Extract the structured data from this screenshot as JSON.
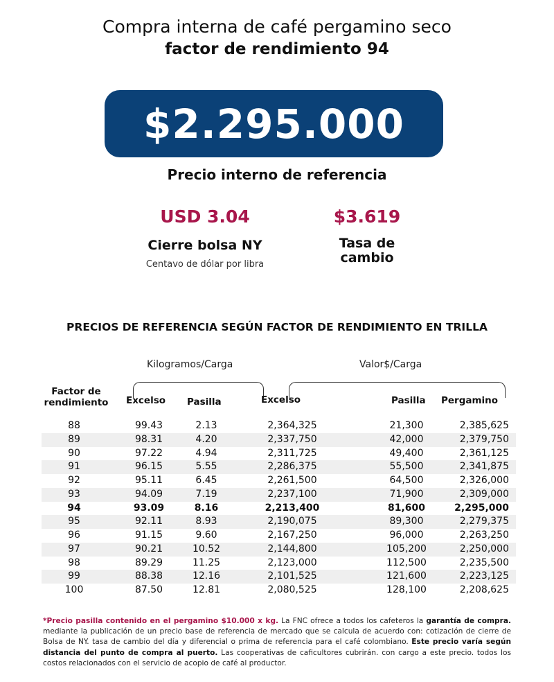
{
  "title": "Compra interna de café pergamino seco",
  "subtitle": "factor de rendimiento 94",
  "price": "$2.295.000",
  "price_label": "Precio interno de referencia",
  "ny": {
    "value": "USD 3.04",
    "label": "Cierre bolsa NY",
    "sublabel": "Centavo de dólar por libra"
  },
  "fx": {
    "value": "$3.619",
    "label_1": "Tasa de",
    "label_2": "cambio"
  },
  "section_title": "PRECIOS DE REFERENCIA SEGÚN FACTOR DE RENDIMIENTO EN TRILLA",
  "table": {
    "group_kg": "Kilogramos/Carga",
    "group_val": "Valor$/Carga",
    "headers": {
      "factor_1": "Factor de",
      "factor_2": "rendimiento",
      "excelso_kg": "Excelso",
      "pasilla_kg": "Pasilla",
      "excelso_val": "Excelso",
      "pasilla_val": "Pasilla",
      "pergamino": "Pergamino"
    },
    "highlight_factor": "94",
    "rows": [
      [
        "88",
        "99.43",
        "2.13",
        "2,364,325",
        "21,300",
        "2,385,625"
      ],
      [
        "89",
        "98.31",
        "4.20",
        "2,337,750",
        "42,000",
        "2,379,750"
      ],
      [
        "90",
        "97.22",
        "4.94",
        "2,311,725",
        "49,400",
        "2,361,125"
      ],
      [
        "91",
        "96.15",
        "5.55",
        "2,286,375",
        "55,500",
        "2,341,875"
      ],
      [
        "92",
        "95.11",
        "6.45",
        "2,261,500",
        "64,500",
        "2,326,000"
      ],
      [
        "93",
        "94.09",
        "7.19",
        "2,237,100",
        "71,900",
        "2,309,000"
      ],
      [
        "94",
        "93.09",
        "8.16",
        "2,213,400",
        "81,600",
        "2,295,000"
      ],
      [
        "95",
        "92.11",
        "8.93",
        "2,190,075",
        "89,300",
        "2,279,375"
      ],
      [
        "96",
        "91.15",
        "9.60",
        "2,167,250",
        "96,000",
        "2,263,250"
      ],
      [
        "97",
        "90.21",
        "10.52",
        "2,144,800",
        "105,200",
        "2,250,000"
      ],
      [
        "98",
        "89.29",
        "11.25",
        "2,123,000",
        "112,500",
        "2,235,500"
      ],
      [
        "99",
        "88.38",
        "12.16",
        "2,101,525",
        "121,600",
        "2,223,125"
      ],
      [
        "100",
        "87.50",
        "12.81",
        "2,080,525",
        "128,100",
        "2,208,625"
      ]
    ]
  },
  "footnote": {
    "p1": "*Precio pasilla contenido en el pergamino $10.000 x kg.",
    "p2": " La FNC ofrece a todos los cafeteros la ",
    "p3": "garantía de compra.",
    "p4": " mediante la publicación de un precio base de referencia de mercado que se calcula de acuerdo con: cotización de cierre de Bolsa de NY. tasa de cambio del día y diferencial o prima de referencia para el café colombiano. ",
    "p5": "Este precio varía según distancia del punto de compra al puerto.",
    "p6": " Las cooperativas de caficultores cubrirán. con cargo a este precio. todos los costos relacionados con el servicio de acopio de café al productor."
  },
  "colors": {
    "navy": "#0b4177",
    "crimson": "#a8164b",
    "row_shade": "#efefef"
  }
}
